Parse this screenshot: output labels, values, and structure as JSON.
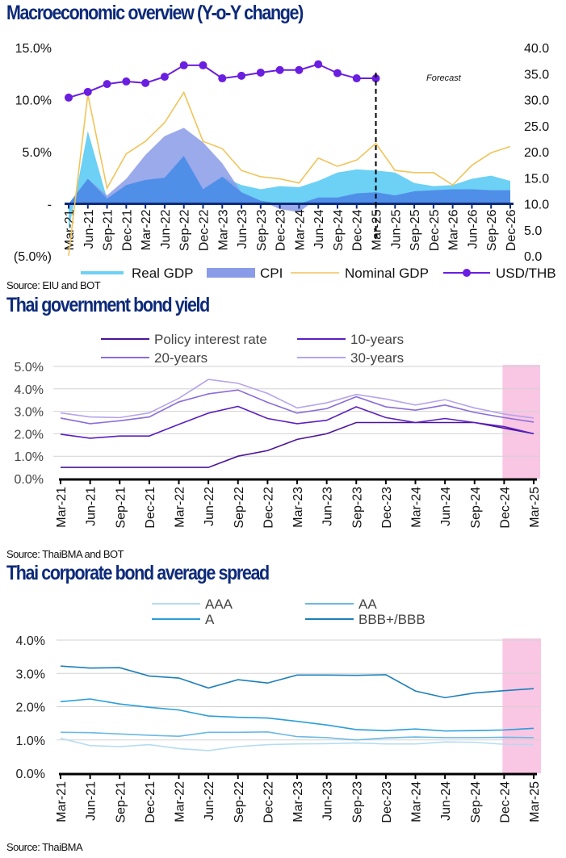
{
  "chart_data": [
    {
      "id": "macro",
      "type": "area",
      "title": "Macroeconomic overview (Y-o-Y change)",
      "source": "Source: EIU and BOT",
      "annotation": "Forecast",
      "forecast_start": "Mar-25",
      "categories": [
        "Mar-21",
        "Jun-21",
        "Sep-21",
        "Dec-21",
        "Mar-22",
        "Jun-22",
        "Sep-22",
        "Dec-22",
        "Mar-23",
        "Jun-23",
        "Sep-23",
        "Dec-23",
        "Mar-24",
        "Jun-24",
        "Sep-24",
        "Dec-24",
        "Mar-25",
        "Jun-25",
        "Sep-25",
        "Dec-25",
        "Mar-26",
        "Jun-26",
        "Sep-26",
        "Dec-26"
      ],
      "y_left": {
        "min": -5,
        "max": 15,
        "ticks": [
          15,
          10,
          5,
          0,
          -5
        ],
        "tick_labels": [
          "15.0%",
          "10.0%",
          "5.0%",
          "-",
          "(5.0%)"
        ]
      },
      "y_right": {
        "min": 0,
        "max": 40,
        "ticks": [
          40,
          35,
          30,
          25,
          20,
          15,
          10,
          5,
          0
        ],
        "tick_labels": [
          "40.0",
          "35.0",
          "30.0",
          "25.0",
          "20.0",
          "15.0",
          "10.0",
          "5.0",
          "0.0"
        ]
      },
      "series": [
        {
          "name": "Real GDP",
          "kind": "area",
          "axis": "left",
          "color": "#6dd0f5",
          "values": [
            -2.6,
            7.0,
            0.5,
            1.8,
            2.3,
            2.5,
            4.6,
            1.4,
            2.6,
            1.8,
            1.4,
            1.7,
            1.6,
            2.2,
            3.0,
            3.3,
            3.2,
            3.0,
            2.0,
            1.7,
            1.8,
            2.4,
            2.7,
            2.2
          ]
        },
        {
          "name": "CPI",
          "kind": "area",
          "axis": "left",
          "color": "#8a9be8",
          "values": [
            -0.5,
            2.4,
            0.8,
            2.4,
            4.7,
            6.5,
            7.3,
            5.9,
            3.9,
            1.1,
            0.3,
            -0.5,
            -0.8,
            0.6,
            0.6,
            1.0,
            1.1,
            0.8,
            1.2,
            1.3,
            1.4,
            1.4,
            1.3,
            1.3
          ]
        },
        {
          "name": "Nominal GDP",
          "kind": "line",
          "axis": "left",
          "color": "#f1c45a",
          "values": [
            -5.0,
            10.5,
            1.5,
            4.8,
            6.0,
            7.8,
            10.7,
            6.0,
            5.3,
            3.2,
            2.6,
            2.4,
            2.0,
            4.4,
            3.6,
            4.2,
            5.8,
            3.2,
            3.0,
            3.0,
            1.8,
            3.7,
            4.9,
            5.5
          ]
        },
        {
          "name": "USD/THB",
          "kind": "line-marker",
          "axis": "right",
          "color": "#6a1ee0",
          "values": [
            30.4,
            31.5,
            33.0,
            33.5,
            33.2,
            34.4,
            36.6,
            36.6,
            34.1,
            34.6,
            35.2,
            35.7,
            35.7,
            36.8,
            35.1,
            34.1,
            34.1,
            null,
            null,
            null,
            null,
            null,
            null,
            null
          ]
        }
      ],
      "legend": [
        "Real GDP",
        "CPI",
        "Nominal GDP",
        "USD/THB"
      ],
      "legend_position": "bottom"
    },
    {
      "id": "govbond",
      "type": "line",
      "title": "Thai government bond yield",
      "source": "Source: ThaiBMA and BOT",
      "categories": [
        "Mar-21",
        "Jun-21",
        "Sep-21",
        "Dec-21",
        "Mar-22",
        "Jun-22",
        "Sep-22",
        "Dec-22",
        "Mar-23",
        "Jun-23",
        "Sep-23",
        "Dec-23",
        "Mar-24",
        "Jun-24",
        "Sep-24",
        "Dec-24",
        "Mar-25"
      ],
      "highlight": [
        "Dec-24",
        "Mar-25"
      ],
      "highlight_color": "#f9c6e4",
      "ylim": [
        0,
        5
      ],
      "ticks": [
        5,
        4,
        3,
        2,
        1,
        0
      ],
      "tick_labels": [
        "5.0%",
        "4.0%",
        "3.0%",
        "2.0%",
        "1.0%",
        "0.0%"
      ],
      "grid": true,
      "series": [
        {
          "name": "Policy interest rate",
          "color": "#4a1599",
          "values": [
            0.5,
            0.5,
            0.5,
            0.5,
            0.5,
            0.5,
            1.0,
            1.25,
            1.75,
            2.0,
            2.5,
            2.5,
            2.5,
            2.5,
            2.5,
            2.25,
            2.0
          ]
        },
        {
          "name": "10-years",
          "color": "#5b1fc0",
          "values": [
            1.98,
            1.8,
            1.9,
            1.9,
            2.42,
            2.92,
            3.22,
            2.68,
            2.45,
            2.6,
            3.2,
            2.72,
            2.5,
            2.68,
            2.5,
            2.32,
            2.0
          ]
        },
        {
          "name": "20-years",
          "color": "#8a6cd8",
          "values": [
            2.7,
            2.45,
            2.58,
            2.75,
            3.42,
            3.78,
            3.95,
            3.4,
            2.92,
            3.12,
            3.65,
            3.2,
            3.05,
            3.28,
            2.95,
            2.72,
            2.52
          ]
        },
        {
          "name": "30-years",
          "color": "#b6a4ea",
          "values": [
            2.93,
            2.75,
            2.72,
            2.93,
            3.58,
            4.42,
            4.25,
            3.8,
            3.15,
            3.38,
            3.75,
            3.55,
            3.28,
            3.52,
            3.15,
            2.88,
            2.7
          ]
        }
      ],
      "legend": [
        "Policy interest rate",
        "10-years",
        "20-years",
        "30-years"
      ],
      "legend_position": "top"
    },
    {
      "id": "corpspread",
      "type": "line",
      "title": "Thai corporate bond average spread",
      "source": "Source: ThaiBMA",
      "categories": [
        "Mar-21",
        "Jun-21",
        "Sep-21",
        "Dec-21",
        "Mar-22",
        "Jun-22",
        "Sep-22",
        "Dec-22",
        "Mar-23",
        "Jun-23",
        "Sep-23",
        "Dec-23",
        "Mar-24",
        "Jun-24",
        "Sep-24",
        "Dec-24",
        "Mar-25"
      ],
      "highlight": [
        "Dec-24",
        "Mar-25"
      ],
      "highlight_color": "#f9c6e4",
      "ylim": [
        0,
        4
      ],
      "ticks": [
        4,
        3,
        2,
        1,
        0
      ],
      "tick_labels": [
        "4.0%",
        "3.0%",
        "2.0%",
        "1.0%",
        "0.0%"
      ],
      "grid": true,
      "series": [
        {
          "name": "AAA",
          "color": "#b4dcf0",
          "values": [
            1.05,
            0.83,
            0.8,
            0.86,
            0.74,
            0.68,
            0.8,
            0.86,
            0.88,
            0.89,
            0.91,
            0.88,
            0.88,
            0.94,
            0.93,
            0.87,
            0.86
          ]
        },
        {
          "name": "AA",
          "color": "#6ab8e4",
          "values": [
            1.23,
            1.22,
            1.18,
            1.14,
            1.11,
            1.23,
            1.23,
            1.24,
            1.1,
            1.07,
            1.0,
            1.06,
            1.09,
            1.07,
            1.07,
            1.08,
            1.07
          ]
        },
        {
          "name": "A",
          "color": "#2a9ed8",
          "values": [
            2.15,
            2.23,
            2.08,
            1.98,
            1.9,
            1.72,
            1.68,
            1.66,
            1.56,
            1.45,
            1.31,
            1.28,
            1.33,
            1.27,
            1.28,
            1.3,
            1.35
          ]
        },
        {
          "name": "BBB+/BBB",
          "color": "#1d7fb8",
          "values": [
            3.22,
            3.16,
            3.17,
            2.92,
            2.86,
            2.56,
            2.81,
            2.71,
            2.95,
            2.95,
            2.94,
            2.96,
            2.47,
            2.27,
            2.41,
            2.48,
            2.54
          ]
        }
      ],
      "legend": [
        "AAA",
        "AA",
        "A",
        "BBB+/BBB"
      ],
      "legend_position": "top"
    }
  ]
}
